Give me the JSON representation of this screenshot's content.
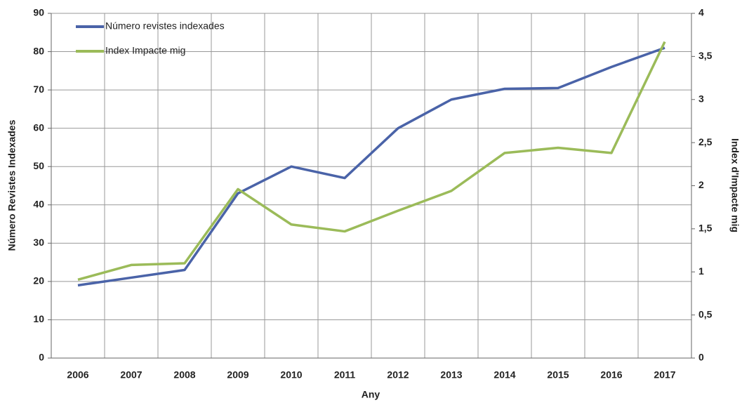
{
  "chart_data": {
    "type": "line",
    "x_label": "Any",
    "y_label": "Número Revistes Indexades",
    "y2_label": "Index d'Impacte mig",
    "categories": [
      "2006",
      "2007",
      "2008",
      "2009",
      "2010",
      "2011",
      "2012",
      "2013",
      "2014",
      "2015",
      "2016",
      "2017"
    ],
    "series": [
      {
        "name": "Número revistes indexades",
        "color": "#4a63a8",
        "values": [
          19,
          21,
          23,
          43,
          50,
          47,
          60,
          67.5,
          70.3,
          70.5,
          76,
          81
        ]
      },
      {
        "name": "Index Impacte mig",
        "color": "#9bbb59",
        "axis": "y2",
        "values": [
          0.91,
          1.08,
          1.1,
          1.96,
          1.55,
          1.47,
          1.71,
          1.94,
          2.38,
          2.44,
          2.38,
          3.67
        ]
      }
    ],
    "ylim": [
      0,
      90
    ],
    "yticks": [
      0,
      10,
      20,
      30,
      40,
      50,
      60,
      70,
      80,
      90
    ],
    "y2lim": [
      0,
      4
    ],
    "y2ticks": [
      0,
      {
        "value": 0.5,
        "label": "0,5"
      },
      1,
      {
        "value": 1.5,
        "label": "1,5"
      },
      2,
      {
        "value": 2.5,
        "label": "2,5"
      },
      3,
      {
        "value": 3.5,
        "label": "3,5"
      },
      4
    ],
    "grid": true,
    "legend": "top-left"
  }
}
